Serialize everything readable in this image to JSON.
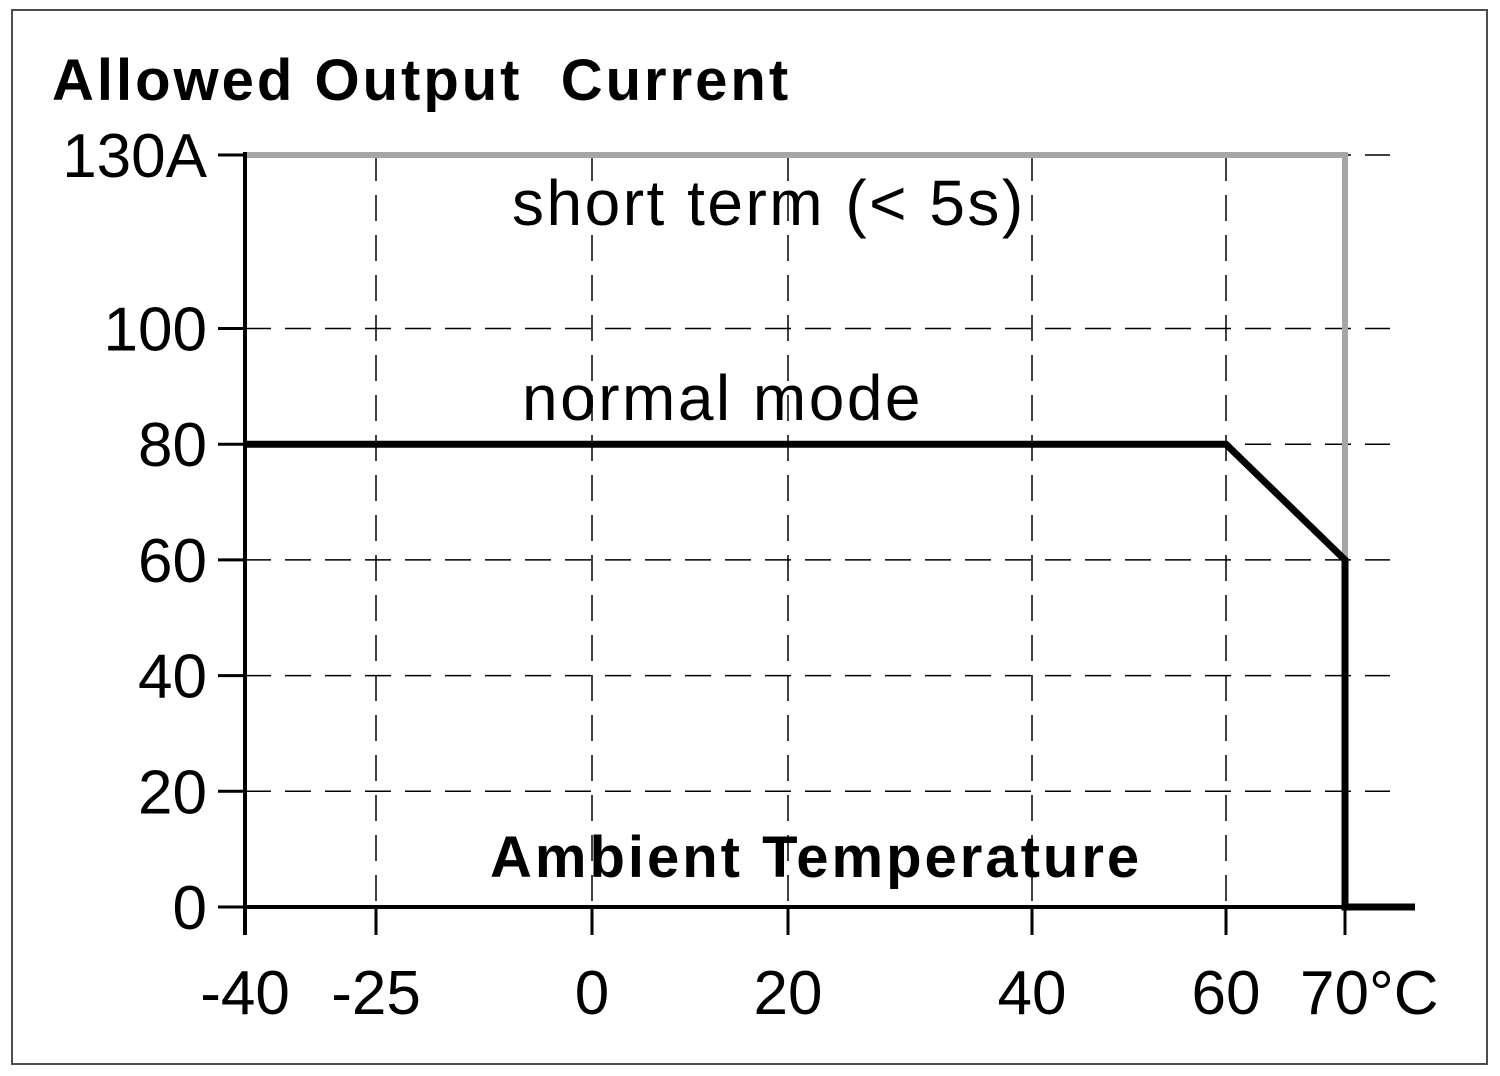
{
  "chart_data": {
    "type": "line",
    "title": "Allowed Output  Current",
    "xlabel": "Ambient Temperature",
    "x_ticks": [
      -40,
      -25,
      0,
      20,
      40,
      60,
      70
    ],
    "x_tick_labels": [
      "-40",
      "-25",
      "0",
      "20",
      "40",
      "60",
      "70°C"
    ],
    "y_ticks": [
      0,
      20,
      40,
      60,
      80,
      100,
      130
    ],
    "y_tick_labels": [
      "0",
      "20",
      "40",
      "60",
      "80",
      "100",
      "130A"
    ],
    "xlim": [
      -40,
      70
    ],
    "ylim": [
      0,
      130
    ],
    "grid": true,
    "series": [
      {
        "name": "normal mode",
        "color": "#000000",
        "points": [
          [
            -40,
            80
          ],
          [
            60,
            80
          ],
          [
            70,
            60
          ],
          [
            70,
            0
          ]
        ]
      },
      {
        "name": "short term (< 5s)",
        "color": "#a6a6a6",
        "points": [
          [
            -40,
            130
          ],
          [
            70,
            130
          ],
          [
            70,
            60
          ]
        ]
      }
    ]
  }
}
